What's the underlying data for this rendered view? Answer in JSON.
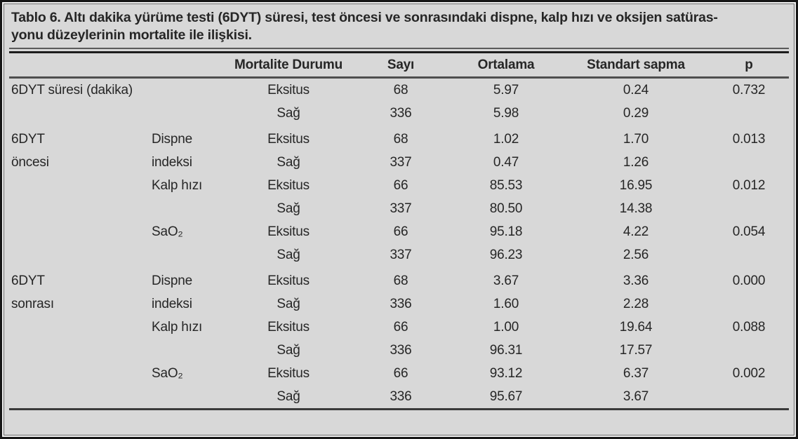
{
  "colors": {
    "background": "#d8d8d8",
    "frame": "#161616",
    "text": "#262626",
    "rule_dark": "#1c1c1c",
    "rule_gray": "#4f4f4f"
  },
  "title": {
    "line1": "Tablo 6. Altı dakika yürüme testi (6DYT) süresi, test öncesi ve sonrasındaki dispne, kalp hızı ve oksijen satüras-",
    "line2": "yonu düzeylerinin mortalite ile ilişkisi."
  },
  "table": {
    "headers": {
      "group": "",
      "measure": "",
      "status": "Mortalite Durumu",
      "n": "Sayı",
      "mean": "Ortalama",
      "sd": "Standart sapma",
      "p": "p"
    },
    "rows": [
      {
        "group": "6DYT süresi (dakika)",
        "measure": "",
        "status": "Eksitus",
        "n": "68",
        "mean": "5.97",
        "sd": "0.24",
        "p": "0.732"
      },
      {
        "group": "",
        "measure": "",
        "status": "Sağ",
        "n": "336",
        "mean": "5.98",
        "sd": "0.29",
        "p": ""
      },
      {
        "group": "6DYT",
        "measure": "Dispne",
        "status": "Eksitus",
        "n": "68",
        "mean": "1.02",
        "sd": "1.70",
        "p": "0.013"
      },
      {
        "group": "öncesi",
        "measure": "indeksi",
        "status": "Sağ",
        "n": "337",
        "mean": "0.47",
        "sd": "1.26",
        "p": ""
      },
      {
        "group": "",
        "measure": "Kalp hızı",
        "status": "Eksitus",
        "n": "66",
        "mean": "85.53",
        "sd": "16.95",
        "p": "0.012"
      },
      {
        "group": "",
        "measure": "",
        "status": "Sağ",
        "n": "337",
        "mean": "80.50",
        "sd": "14.38",
        "p": ""
      },
      {
        "group": "",
        "measure": "SaO₂",
        "status": "Eksitus",
        "n": "66",
        "mean": "95.18",
        "sd": "4.22",
        "p": "0.054"
      },
      {
        "group": "",
        "measure": "",
        "status": "Sağ",
        "n": "337",
        "mean": "96.23",
        "sd": "2.56",
        "p": ""
      },
      {
        "group": "6DYT",
        "measure": "Dispne",
        "status": "Eksitus",
        "n": "68",
        "mean": "3.67",
        "sd": "3.36",
        "p": "0.000"
      },
      {
        "group": "sonrası",
        "measure": "indeksi",
        "status": "Sağ",
        "n": "336",
        "mean": "1.60",
        "sd": "2.28",
        "p": ""
      },
      {
        "group": "",
        "measure": "Kalp hızı",
        "status": "Eksitus",
        "n": "66",
        "mean": "1.00",
        "sd": "19.64",
        "p": "0.088"
      },
      {
        "group": "",
        "measure": "",
        "status": "Sağ",
        "n": "336",
        "mean": "96.31",
        "sd": "17.57",
        "p": ""
      },
      {
        "group": "",
        "measure": "SaO₂",
        "status": "Eksitus",
        "n": "66",
        "mean": "93.12",
        "sd": "6.37",
        "p": "0.002"
      },
      {
        "group": "",
        "measure": "",
        "status": "Sağ",
        "n": "336",
        "mean": "95.67",
        "sd": "3.67",
        "p": ""
      }
    ]
  }
}
